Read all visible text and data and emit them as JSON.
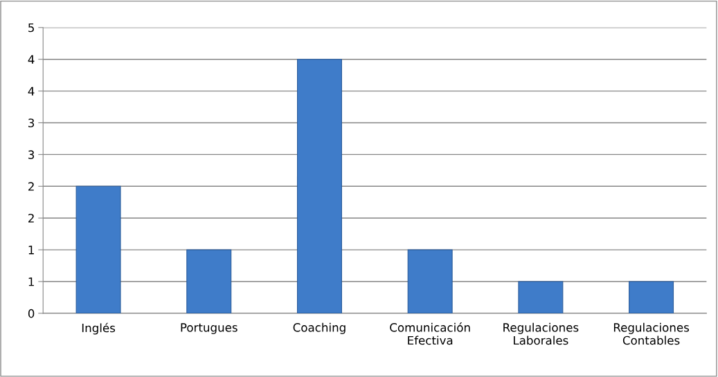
{
  "chart_data": {
    "type": "bar",
    "categories": [
      "Inglés",
      "Portugues",
      "Coaching",
      "Comunicación\nEfectiva",
      "Regulaciones\nLaborales",
      "Regulaciones\nContables"
    ],
    "values": [
      2,
      1,
      4,
      1,
      0.5,
      0.5
    ],
    "color": "#3f7cc9",
    "ylim": [
      0,
      4.5
    ],
    "yticks": [
      {
        "value": 0,
        "label": "0"
      },
      {
        "value": 0.5,
        "label": "1"
      },
      {
        "value": 1,
        "label": "1"
      },
      {
        "value": 1.5,
        "label": "2"
      },
      {
        "value": 2,
        "label": "2"
      },
      {
        "value": 2.5,
        "label": "3"
      },
      {
        "value": 3,
        "label": "3"
      },
      {
        "value": 3.5,
        "label": "4"
      },
      {
        "value": 4,
        "label": "4"
      },
      {
        "value": 4.5,
        "label": "5"
      }
    ],
    "grid": "y",
    "legend": false
  }
}
